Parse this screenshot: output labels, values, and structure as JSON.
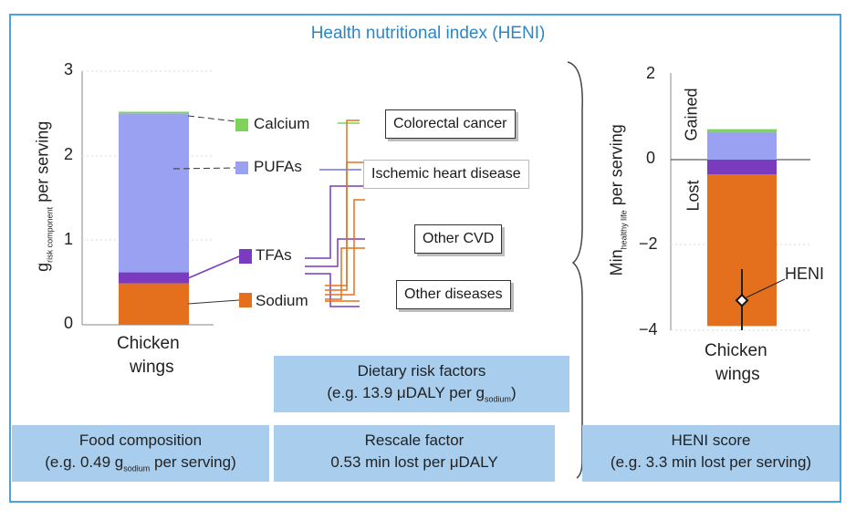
{
  "title": "Health nutritional index (HENI)",
  "left_chart": {
    "y_axis_main": "g",
    "y_axis_sub": "risk component",
    "y_axis_suffix": "per serving",
    "ticks": [
      "0",
      "1",
      "2",
      "3"
    ],
    "xlabel_line1": "Chicken",
    "xlabel_line2": "wings",
    "colors": {
      "sodium": "#e4701e",
      "tfas": "#7a3bbf",
      "pufas": "#9aa1f2",
      "calcium": "#7fd35b"
    }
  },
  "chart_data": [
    {
      "type": "bar",
      "title": "",
      "categories": [
        "Chicken wings"
      ],
      "series": [
        {
          "name": "Sodium",
          "values": [
            0.49
          ]
        },
        {
          "name": "TFAs",
          "values": [
            0.13
          ]
        },
        {
          "name": "PUFAs",
          "values": [
            1.88
          ]
        },
        {
          "name": "Calcium",
          "values": [
            0.02
          ]
        }
      ],
      "stacked": true,
      "ylim": [
        0,
        3
      ],
      "ylabel": "g risk component per serving"
    },
    {
      "type": "bar",
      "title": "",
      "categories": [
        "Chicken wings"
      ],
      "series": [
        {
          "name": "Gained",
          "values": [
            0.65
          ]
        },
        {
          "name": "Lost (TFAs)",
          "values": [
            -0.35
          ]
        },
        {
          "name": "Lost (Sodium)",
          "values": [
            -3.55
          ]
        }
      ],
      "stacked": true,
      "ylim": [
        -4,
        2
      ],
      "marker": {
        "label": "HENI",
        "value": -3.3
      },
      "ylabel": "Min healthy life per serving"
    }
  ],
  "legend": {
    "calcium": "Calcium",
    "pufas": "PUFAs",
    "tfas": "TFAs",
    "sodium": "Sodium"
  },
  "outcomes": {
    "colorectal": "Colorectal cancer",
    "ischemic": "Ischemic heart disease",
    "cvd": "Other CVD",
    "other": "Other diseases"
  },
  "right_chart": {
    "y_axis_main": "Min",
    "y_axis_sub": "healthy life",
    "y_axis_suffix": "per serving",
    "ticks": [
      "2",
      "0",
      "−2",
      "−4"
    ],
    "gained": "Gained",
    "lost": "Lost",
    "heni_label": "HENI",
    "xlabel_line1": "Chicken",
    "xlabel_line2": "wings"
  },
  "boxes": {
    "food_line1": "Food  composition",
    "food_line2_pre": "(e.g. 0.49 g",
    "food_line2_sub": "sodium",
    "food_line2_post": " per serving)",
    "dietary_line1": "Dietary risk factors",
    "dietary_line2_pre": "(e.g. 13.9 μDALY per g",
    "dietary_line2_sub": "sodium",
    "dietary_line2_post": ")",
    "rescale_line1": "Rescale factor",
    "rescale_line2": "0.53 min lost per μDALY",
    "heni_line1": "HENI score",
    "heni_line2": "(e.g. 3.3 min lost per serving)"
  }
}
